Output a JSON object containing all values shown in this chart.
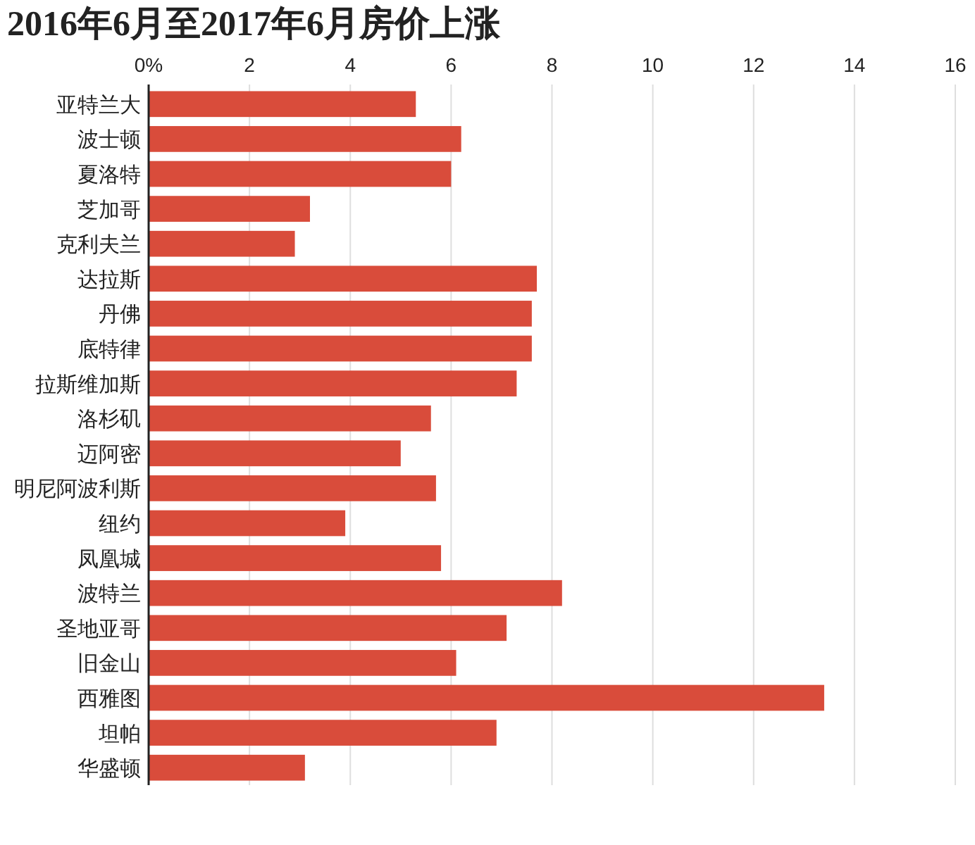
{
  "chart_data": {
    "type": "bar",
    "orientation": "horizontal",
    "title": "2016年6月至2017年6月房价上涨",
    "categories": [
      "亚特兰大",
      "波士顿",
      "夏洛特",
      "芝加哥",
      "克利夫兰",
      "达拉斯",
      "丹佛",
      "底特律",
      "拉斯维加斯",
      "洛杉矶",
      "迈阿密",
      "明尼阿波利斯",
      "纽约",
      "凤凰城",
      "波特兰",
      "圣地亚哥",
      "旧金山",
      "西雅图",
      "坦帕",
      "华盛顿"
    ],
    "values": [
      5.3,
      6.2,
      6.0,
      3.2,
      2.9,
      7.7,
      7.6,
      7.6,
      7.3,
      5.6,
      5.0,
      5.7,
      3.9,
      5.8,
      8.2,
      7.1,
      6.1,
      13.4,
      6.9,
      3.1
    ],
    "color": "#d94c3b",
    "xlim": [
      0,
      16
    ],
    "xticks": [
      {
        "value": 0,
        "label": "0%"
      },
      2,
      4,
      6,
      8,
      10,
      12,
      14,
      16
    ],
    "grid": "x"
  }
}
